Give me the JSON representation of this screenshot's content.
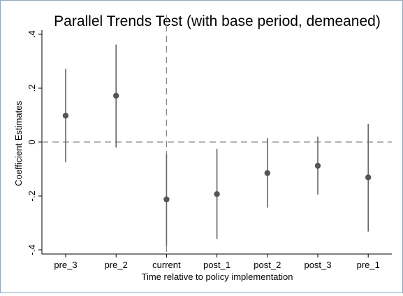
{
  "chart_data": {
    "type": "scatter",
    "title": "Parallel Trends Test (with base period, demeaned)",
    "xlabel": "Time relative to policy implementation",
    "ylabel": "Coefficient Estimates",
    "categories": [
      "pre_3",
      "pre_2",
      "current",
      "post_1",
      "post_2",
      "post_3",
      "pre_1"
    ],
    "points": [
      0.098,
      0.172,
      -0.213,
      -0.193,
      -0.115,
      -0.088,
      -0.131
    ],
    "ci_low": [
      -0.075,
      -0.02,
      -0.385,
      -0.36,
      -0.243,
      -0.195,
      -0.332
    ],
    "ci_high": [
      0.272,
      0.362,
      -0.045,
      -0.025,
      0.015,
      0.02,
      0.068
    ],
    "yticks": [
      0.4,
      0.2,
      0,
      -0.2,
      -0.4
    ],
    "ytick_labels": [
      ".4",
      ".2",
      "0",
      "-.2",
      "-.4"
    ],
    "ylim": [
      -0.42,
      0.42
    ],
    "reference_lines": {
      "y": 0,
      "x_category": "current"
    },
    "grid": false,
    "legend": "none",
    "colors": {
      "marker": "#555555",
      "ci": "#666666",
      "reference": "#888888",
      "axis": "#000000"
    }
  }
}
